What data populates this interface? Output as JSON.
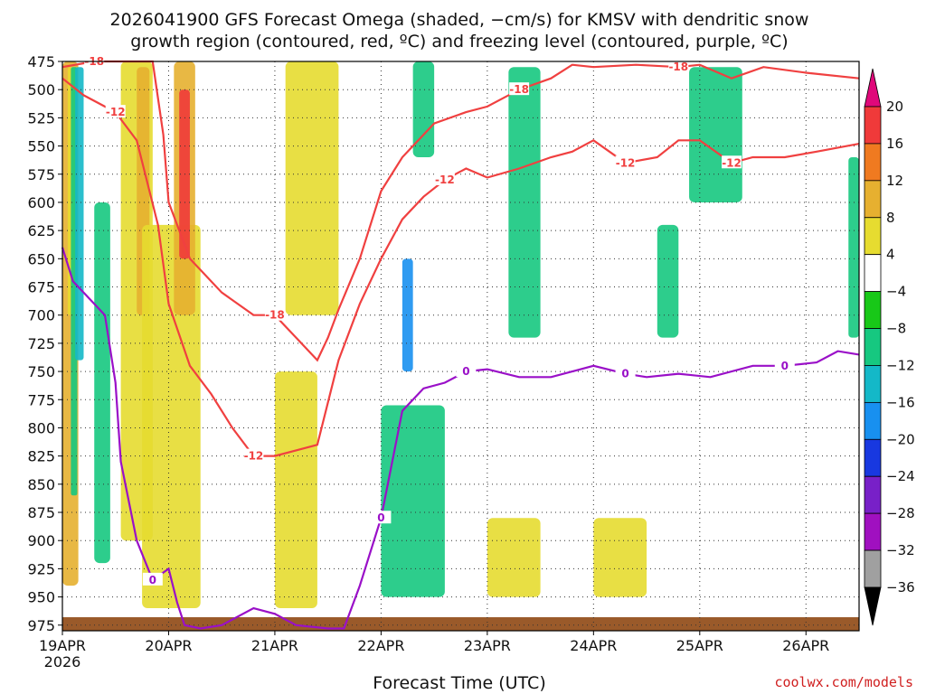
{
  "chart_data": {
    "type": "heatmap",
    "title_lines": [
      "2026041900 GFS Forecast Omega (shaded, −cm/s) for KMSV with dendritic snow",
      "growth region (contoured, red, ºC) and freezing level (contoured, purple, ºC)"
    ],
    "xlabel": "Forecast Time (UTC)",
    "ylabel": "",
    "x_ticks": [
      "19APR",
      "20APR",
      "21APR",
      "22APR",
      "23APR",
      "24APR",
      "25APR",
      "26APR"
    ],
    "x_tick_days": [
      0,
      1,
      2,
      3,
      4,
      5,
      6,
      7
    ],
    "x_year": "2026",
    "x_range_days": [
      0,
      7.5
    ],
    "y_ticks": [
      475,
      500,
      525,
      550,
      575,
      600,
      625,
      650,
      675,
      700,
      725,
      750,
      775,
      800,
      825,
      850,
      875,
      900,
      925,
      950,
      975
    ],
    "y_range": [
      475,
      980
    ],
    "grid": true,
    "colorbar": {
      "levels": [
        20,
        16,
        12,
        8,
        4,
        -4,
        -8,
        -12,
        -16,
        -20,
        -24,
        -28,
        -32,
        -36
      ],
      "colors": [
        "#e0087a",
        "#f03a3a",
        "#f07a20",
        "#e6b030",
        "#e6dc30",
        "#ffffff",
        "#18c818",
        "#16c880",
        "#14b8c8",
        "#1890f0",
        "#1838e0",
        "#7820c8",
        "#a010c0",
        "#a0a0a0",
        "#000000"
      ]
    },
    "contour_labels": {
      "dgz": [
        "-18",
        "-12"
      ],
      "freezing": [
        "0"
      ]
    },
    "shaded_regions": [
      {
        "t": [
          0.0,
          0.15
        ],
        "p": [
          475,
          940
        ],
        "value": 12
      },
      {
        "t": [
          0.05,
          0.12
        ],
        "p": [
          480,
          700
        ],
        "value": 8
      },
      {
        "t": [
          0.08,
          0.14
        ],
        "p": [
          480,
          860
        ],
        "value": -8
      },
      {
        "t": [
          0.12,
          0.2
        ],
        "p": [
          480,
          740
        ],
        "value": -12
      },
      {
        "t": [
          0.3,
          0.45
        ],
        "p": [
          600,
          920
        ],
        "value": -8
      },
      {
        "t": [
          0.55,
          0.85
        ],
        "p": [
          475,
          900
        ],
        "value": 8
      },
      {
        "t": [
          0.7,
          0.82
        ],
        "p": [
          480,
          700
        ],
        "value": 12
      },
      {
        "t": [
          0.75,
          1.3
        ],
        "p": [
          620,
          960
        ],
        "value": 8
      },
      {
        "t": [
          1.05,
          1.25
        ],
        "p": [
          475,
          700
        ],
        "value": 12
      },
      {
        "t": [
          1.1,
          1.2
        ],
        "p": [
          500,
          650
        ],
        "value": 20
      },
      {
        "t": [
          2.1,
          2.6
        ],
        "p": [
          475,
          700
        ],
        "value": 8
      },
      {
        "t": [
          2.0,
          2.4
        ],
        "p": [
          750,
          960
        ],
        "value": 8
      },
      {
        "t": [
          3.0,
          3.6
        ],
        "p": [
          780,
          950
        ],
        "value": -8
      },
      {
        "t": [
          3.2,
          3.3
        ],
        "p": [
          650,
          750
        ],
        "value": -16
      },
      {
        "t": [
          3.3,
          3.5
        ],
        "p": [
          475,
          560
        ],
        "value": -8
      },
      {
        "t": [
          4.2,
          4.5
        ],
        "p": [
          480,
          720
        ],
        "value": -8
      },
      {
        "t": [
          5.6,
          5.8
        ],
        "p": [
          620,
          720
        ],
        "value": -8
      },
      {
        "t": [
          5.9,
          6.4
        ],
        "p": [
          480,
          600
        ],
        "value": -8
      },
      {
        "t": [
          7.4,
          7.5
        ],
        "p": [
          560,
          720
        ],
        "value": -8
      },
      {
        "t": [
          4.0,
          4.5
        ],
        "p": [
          880,
          950
        ],
        "value": 8
      },
      {
        "t": [
          5.0,
          5.5
        ],
        "p": [
          880,
          950
        ],
        "value": 8
      }
    ],
    "freezing_level": {
      "label": "0",
      "t": [
        0.0,
        0.1,
        0.2,
        0.4,
        0.5,
        0.55,
        0.7,
        0.85,
        1.0,
        1.08,
        1.15,
        1.3,
        1.5,
        1.8,
        2.0,
        2.2,
        2.5,
        2.65,
        2.8,
        3.0,
        3.2,
        3.4,
        3.6,
        3.8,
        4.0,
        4.3,
        4.6,
        4.8,
        5.0,
        5.3,
        5.5,
        5.8,
        6.1,
        6.5,
        6.8,
        7.1,
        7.3,
        7.5
      ],
      "p": [
        640,
        670,
        680,
        700,
        760,
        830,
        900,
        935,
        925,
        955,
        975,
        978,
        975,
        960,
        965,
        975,
        978,
        978,
        940,
        880,
        785,
        765,
        760,
        750,
        748,
        755,
        755,
        750,
        745,
        752,
        755,
        752,
        755,
        745,
        745,
        742,
        732,
        735
      ]
    },
    "dgz_minus12": {
      "label": "-12",
      "t": [
        0.0,
        0.2,
        0.5,
        0.7,
        0.9,
        1.0,
        1.2,
        1.4,
        1.6,
        1.8,
        2.0,
        2.2,
        2.4,
        2.6,
        2.8,
        3.0,
        3.2,
        3.4,
        3.6,
        3.8,
        4.0,
        4.3,
        4.6,
        4.8,
        5.0,
        5.3,
        5.6,
        5.8,
        6.0,
        6.3,
        6.5,
        6.8,
        7.1,
        7.5
      ],
      "p": [
        490,
        505,
        520,
        545,
        620,
        690,
        745,
        770,
        800,
        825,
        825,
        820,
        815,
        740,
        690,
        650,
        615,
        595,
        580,
        570,
        578,
        570,
        560,
        555,
        545,
        565,
        560,
        545,
        545,
        565,
        560,
        560,
        555,
        548
      ]
    },
    "dgz_minus18": {
      "label": "-18",
      "t": [
        0.0,
        0.3,
        0.6,
        0.85,
        0.95,
        1.0,
        1.2,
        1.5,
        1.8,
        2.0,
        2.2,
        2.4,
        2.5,
        2.6,
        2.8,
        3.0,
        3.2,
        3.5,
        3.8,
        4.0,
        4.3,
        4.6,
        4.8,
        5.0,
        5.4,
        5.8,
        6.0,
        6.3,
        6.6,
        7.0,
        7.5
      ],
      "p": [
        480,
        475,
        475,
        475,
        540,
        600,
        650,
        680,
        700,
        700,
        720,
        740,
        720,
        695,
        650,
        590,
        560,
        530,
        520,
        515,
        500,
        490,
        478,
        480,
        478,
        480,
        478,
        490,
        480,
        485,
        490
      ]
    }
  },
  "credit": "coolwx.com/models"
}
